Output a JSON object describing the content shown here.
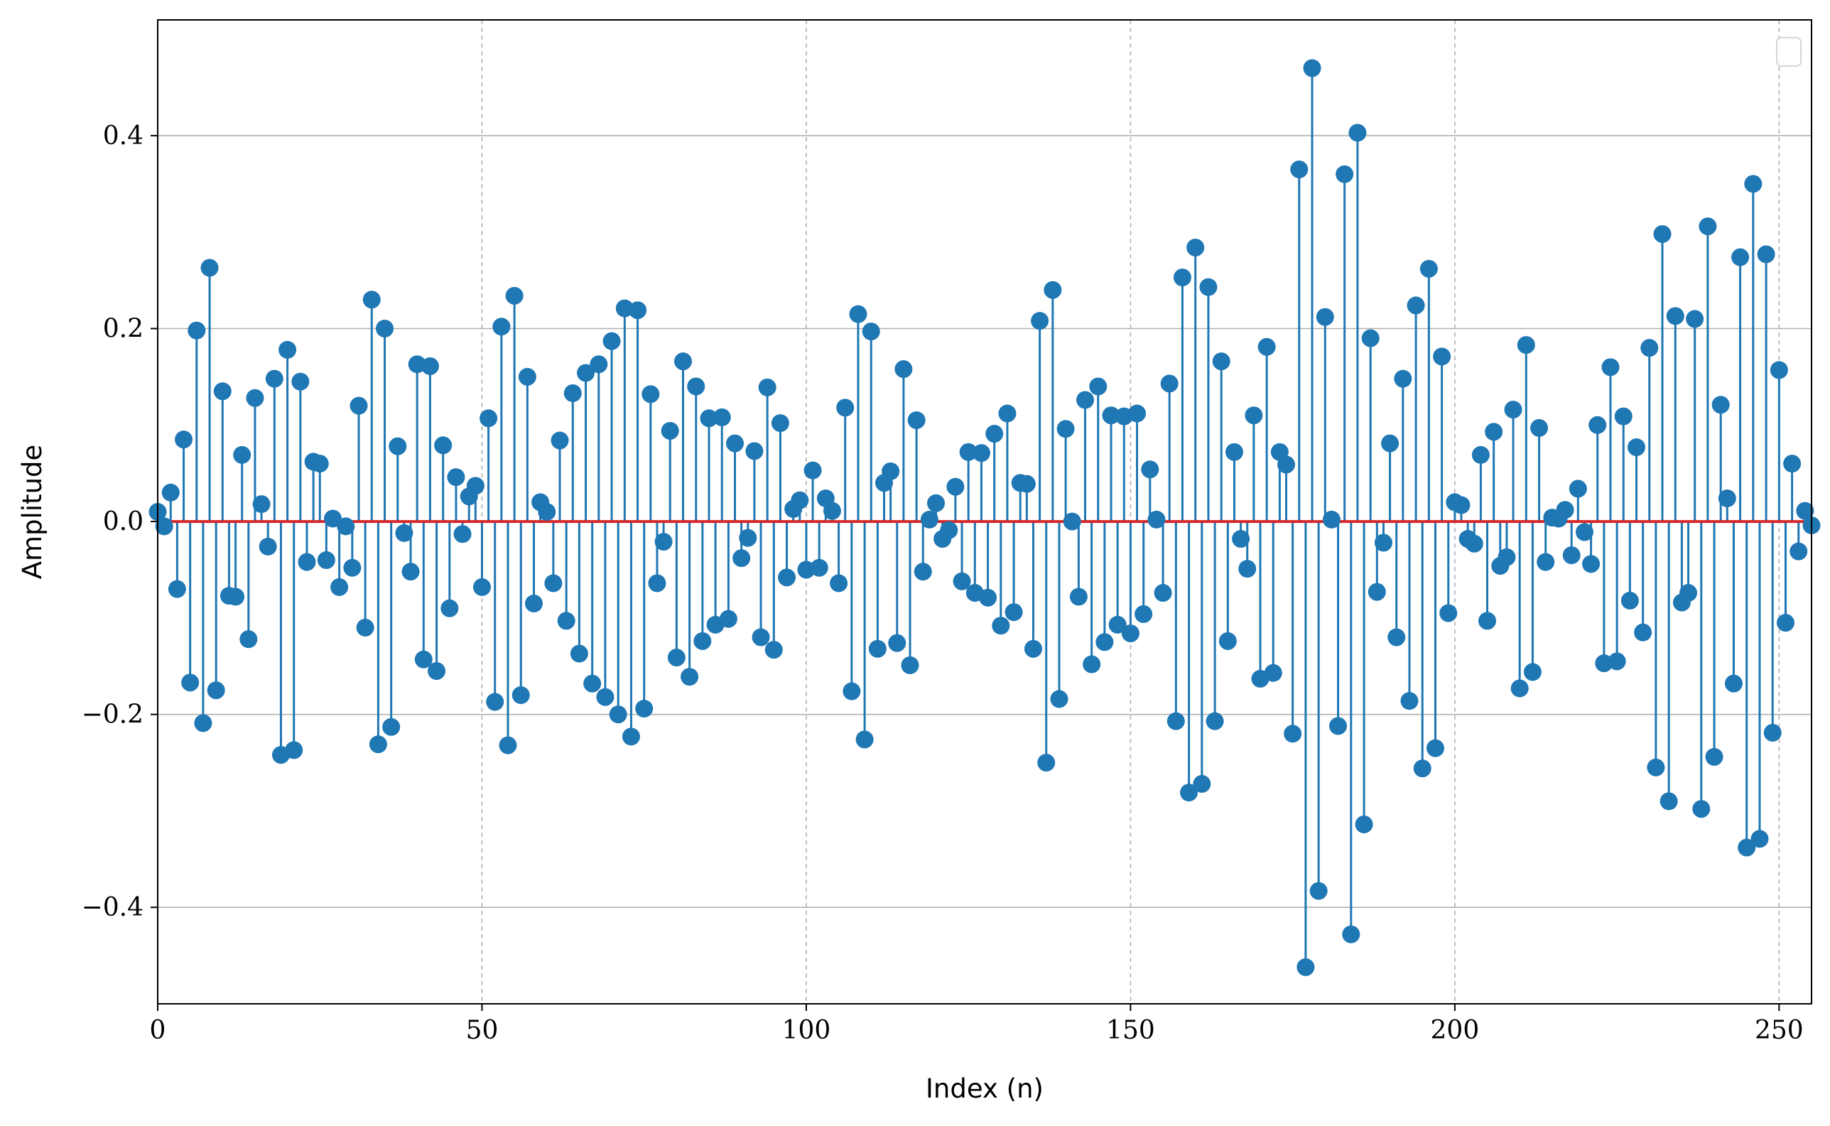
{
  "chart_data": {
    "type": "stem",
    "title": "",
    "xlabel": "Index (n)",
    "ylabel": "Amplitude",
    "xlim": [
      0,
      255
    ],
    "ylim": [
      -0.5,
      0.52
    ],
    "x_ticks": [
      0,
      50,
      100,
      150,
      200,
      250
    ],
    "x_tick_labels": [
      "0",
      "50",
      "100",
      "150",
      "200",
      "250"
    ],
    "y_ticks": [
      -0.4,
      -0.2,
      0.0,
      0.2,
      0.4
    ],
    "y_tick_labels": [
      "−0.4",
      "−0.2",
      "0.0",
      "0.2",
      "0.4"
    ],
    "grid": {
      "x": "dashed",
      "y": "solid"
    },
    "legend": {
      "placement": "top-right",
      "entries": []
    },
    "colors": {
      "stem": "#1f77b4",
      "baseline": "#d62728",
      "grid": "#b0b0b0"
    },
    "baseline_value": 0.0,
    "values": [
      0.01,
      -0.005,
      0.03,
      -0.07,
      0.085,
      -0.167,
      0.198,
      -0.209,
      0.263,
      -0.175,
      0.135,
      -0.077,
      -0.078,
      0.069,
      -0.122,
      0.128,
      0.018,
      -0.026,
      0.148,
      -0.242,
      0.178,
      -0.237,
      0.145,
      -0.042,
      0.062,
      0.06,
      -0.04,
      0.003,
      -0.068,
      -0.005,
      -0.048,
      0.12,
      -0.11,
      0.23,
      -0.231,
      0.2,
      -0.213,
      0.078,
      -0.012,
      -0.052,
      0.163,
      -0.143,
      0.161,
      -0.155,
      0.079,
      -0.09,
      0.046,
      -0.013,
      0.026,
      0.037,
      -0.068,
      0.107,
      -0.187,
      0.202,
      -0.232,
      0.234,
      -0.18,
      0.15,
      -0.085,
      0.02,
      0.01,
      -0.064,
      0.084,
      -0.103,
      0.133,
      -0.137,
      0.154,
      -0.168,
      0.163,
      -0.182,
      0.187,
      -0.2,
      0.221,
      -0.223,
      0.219,
      -0.194,
      0.132,
      -0.064,
      -0.021,
      0.094,
      -0.141,
      0.166,
      -0.161,
      0.14,
      -0.124,
      0.107,
      -0.107,
      0.108,
      -0.101,
      0.081,
      -0.038,
      -0.017,
      0.073,
      -0.12,
      0.139,
      -0.133,
      0.102,
      -0.058,
      0.013,
      0.022,
      -0.05,
      0.053,
      -0.048,
      0.024,
      0.011,
      -0.064,
      0.118,
      -0.176,
      0.215,
      -0.226,
      0.197,
      -0.132,
      0.04,
      0.052,
      -0.126,
      0.158,
      -0.149,
      0.105,
      -0.052,
      0.002,
      0.019,
      -0.018,
      -0.009,
      0.036,
      -0.062,
      0.072,
      -0.074,
      0.071,
      -0.079,
      0.091,
      -0.108,
      0.112,
      -0.094,
      0.04,
      0.039,
      -0.132,
      0.208,
      -0.25,
      0.24,
      -0.184,
      0.096,
      0.0,
      -0.078,
      0.126,
      -0.148,
      0.14,
      -0.125,
      0.11,
      -0.107,
      0.109,
      -0.116,
      0.112,
      -0.096,
      0.054,
      0.002,
      -0.074,
      0.143,
      -0.207,
      0.253,
      -0.281,
      0.284,
      -0.272,
      0.243,
      -0.207,
      0.166,
      -0.124,
      0.072,
      -0.018,
      -0.049,
      0.11,
      -0.163,
      0.181,
      -0.157,
      0.072,
      0.059,
      -0.22,
      0.365,
      -0.462,
      0.47,
      -0.383,
      0.212,
      0.002,
      -0.212,
      0.36,
      -0.428,
      0.403,
      -0.314,
      0.19,
      -0.073,
      -0.022,
      0.081,
      -0.12,
      0.148,
      -0.186,
      0.224,
      -0.256,
      0.262,
      -0.235,
      0.171,
      -0.095,
      0.02,
      0.017,
      -0.018,
      -0.023,
      0.069,
      -0.103,
      0.093,
      -0.046,
      -0.037,
      0.116,
      -0.173,
      0.183,
      -0.156,
      0.097,
      -0.042,
      0.004,
      0.003,
      0.012,
      -0.035,
      0.034,
      -0.011,
      -0.044,
      0.1,
      -0.147,
      0.16,
      -0.145,
      0.109,
      -0.082,
      0.077,
      -0.115,
      0.18,
      -0.255,
      0.298,
      -0.29,
      0.213,
      -0.084,
      -0.074,
      0.21,
      -0.298,
      0.306,
      -0.244,
      0.121,
      0.024,
      -0.168,
      0.274,
      -0.338,
      0.35,
      -0.329,
      0.277,
      -0.219,
      0.157,
      -0.105,
      0.06,
      -0.031,
      0.011,
      -0.004
    ]
  }
}
